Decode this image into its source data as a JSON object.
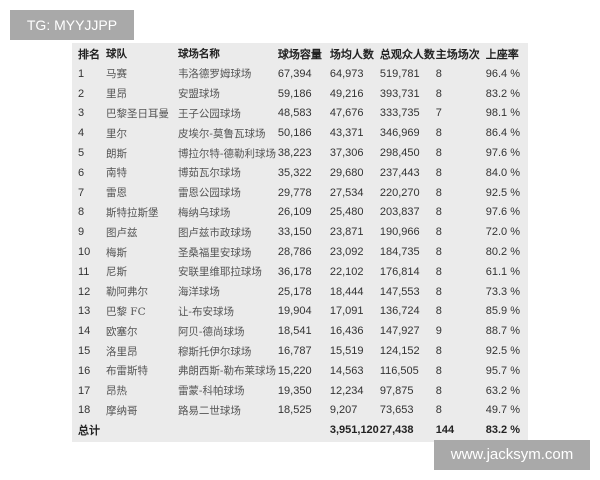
{
  "watermark_top": "TG: MYYJJPP",
  "watermark_bottom": "www.jacksym.com",
  "table": {
    "headers": [
      "排名",
      "球队",
      "球场名称",
      "球场容量",
      "场均人数",
      "总观众人数",
      "主场场次",
      "上座率"
    ],
    "rows": [
      [
        "1",
        "马赛",
        "韦洛德罗姆球场",
        "67,394",
        "64,973",
        "519,781",
        "8",
        "96.4 %"
      ],
      [
        "2",
        "里昂",
        "安盟球场",
        "59,186",
        "49,216",
        "393,731",
        "8",
        "83.2 %"
      ],
      [
        "3",
        "巴黎圣日耳曼",
        "王子公园球场",
        "48,583",
        "47,676",
        "333,735",
        "7",
        "98.1 %"
      ],
      [
        "4",
        "里尔",
        "皮埃尔-莫鲁瓦球场",
        "50,186",
        "43,371",
        "346,969",
        "8",
        "86.4 %"
      ],
      [
        "5",
        "朗斯",
        "博拉尔特-德勒利球场",
        "38,223",
        "37,306",
        "298,450",
        "8",
        "97.6 %"
      ],
      [
        "6",
        "南特",
        "博茹瓦尔球场",
        "35,322",
        "29,680",
        "237,443",
        "8",
        "84.0 %"
      ],
      [
        "7",
        "雷恩",
        "雷恩公园球场",
        "29,778",
        "27,534",
        "220,270",
        "8",
        "92.5 %"
      ],
      [
        "8",
        "斯特拉斯堡",
        "梅纳乌球场",
        "26,109",
        "25,480",
        "203,837",
        "8",
        "97.6 %"
      ],
      [
        "9",
        "图卢兹",
        "图卢兹市政球场",
        "33,150",
        "23,871",
        "190,966",
        "8",
        "72.0 %"
      ],
      [
        "10",
        "梅斯",
        "圣桑福里安球场",
        "28,786",
        "23,092",
        "184,735",
        "8",
        "80.2 %"
      ],
      [
        "11",
        "尼斯",
        "安联里维耶拉球场",
        "36,178",
        "22,102",
        "176,814",
        "8",
        "61.1 %"
      ],
      [
        "12",
        "勒阿弗尔",
        "海洋球场",
        "25,178",
        "18,444",
        "147,553",
        "8",
        "73.3 %"
      ],
      [
        "13",
        "巴黎 FC",
        "让-布安球场",
        "19,904",
        "17,091",
        "136,724",
        "8",
        "85.9 %"
      ],
      [
        "14",
        "欧塞尔",
        "阿贝-德尚球场",
        "18,541",
        "16,436",
        "147,927",
        "9",
        "88.7 %"
      ],
      [
        "15",
        "洛里昂",
        "穆斯托伊尔球场",
        "16,787",
        "15,519",
        "124,152",
        "8",
        "92.5 %"
      ],
      [
        "16",
        "布雷斯特",
        "弗朗西斯-勒布莱球场",
        "15,220",
        "14,563",
        "116,505",
        "8",
        "95.7 %"
      ],
      [
        "17",
        "昂热",
        "雷蒙-科帕球场",
        "19,350",
        "12,234",
        "97,875",
        "8",
        "63.2 %"
      ],
      [
        "18",
        "摩纳哥",
        "路易二世球场",
        "18,525",
        "9,207",
        "73,653",
        "8",
        "49.7 %"
      ]
    ],
    "total": [
      "总计",
      "",
      "",
      "",
      "3,951,120",
      "27,438",
      "144",
      "83.2 %"
    ]
  }
}
